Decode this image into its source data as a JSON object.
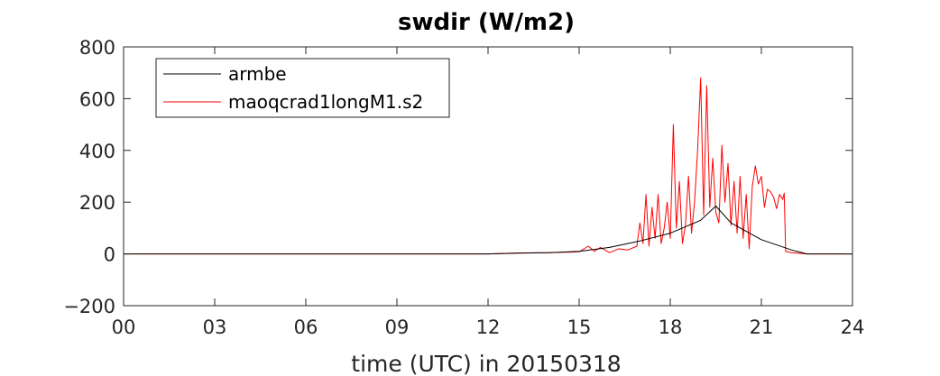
{
  "chart_data": {
    "type": "line",
    "title": "swdir  (W/m2)",
    "xlabel": "time (UTC) in 20150318",
    "ylabel": "",
    "xlim": [
      0,
      24
    ],
    "ylim": [
      -200,
      800
    ],
    "xticks": [
      0,
      3,
      6,
      9,
      12,
      15,
      18,
      21,
      24
    ],
    "xtick_labels": [
      "00",
      "03",
      "06",
      "09",
      "12",
      "15",
      "18",
      "21",
      "24"
    ],
    "yticks": [
      -200,
      0,
      200,
      400,
      600,
      800
    ],
    "ytick_labels": [
      "−200",
      "0",
      "200",
      "400",
      "600",
      "800"
    ],
    "grid": false,
    "legend_position": "top-left",
    "series": [
      {
        "name": "armbe",
        "color": "#000000",
        "x": [
          0,
          12,
          13,
          14,
          15,
          16,
          17,
          18,
          19,
          19.5,
          20,
          21,
          22,
          22.5,
          24
        ],
        "y": [
          0,
          0,
          3,
          5,
          10,
          25,
          50,
          80,
          130,
          185,
          120,
          55,
          15,
          0,
          0
        ]
      },
      {
        "name": "maoqcrad1longM1.s2",
        "color": "#ff0000",
        "x": [
          0,
          12,
          13,
          14,
          15,
          15.3,
          15.5,
          15.7,
          16,
          16.3,
          16.6,
          16.9,
          17.0,
          17.1,
          17.2,
          17.3,
          17.4,
          17.5,
          17.6,
          17.7,
          17.8,
          17.9,
          18.0,
          18.1,
          18.2,
          18.3,
          18.4,
          18.5,
          18.6,
          18.7,
          18.8,
          18.9,
          19.0,
          19.1,
          19.2,
          19.3,
          19.4,
          19.5,
          19.6,
          19.7,
          19.8,
          19.9,
          20.0,
          20.1,
          20.2,
          20.3,
          20.4,
          20.5,
          20.6,
          20.7,
          20.8,
          20.9,
          21.0,
          21.1,
          21.2,
          21.3,
          21.4,
          21.5,
          21.6,
          21.7,
          21.75,
          21.8,
          22.0,
          22.5,
          24
        ],
        "y": [
          0,
          0,
          4,
          5,
          8,
          30,
          10,
          25,
          5,
          20,
          15,
          30,
          120,
          40,
          230,
          30,
          180,
          60,
          230,
          40,
          100,
          200,
          60,
          500,
          100,
          280,
          40,
          110,
          300,
          80,
          200,
          400,
          680,
          150,
          650,
          180,
          370,
          160,
          120,
          420,
          200,
          350,
          110,
          280,
          80,
          300,
          60,
          230,
          20,
          260,
          340,
          270,
          300,
          180,
          250,
          240,
          220,
          175,
          230,
          210,
          235,
          10,
          5,
          0,
          0
        ]
      }
    ]
  }
}
